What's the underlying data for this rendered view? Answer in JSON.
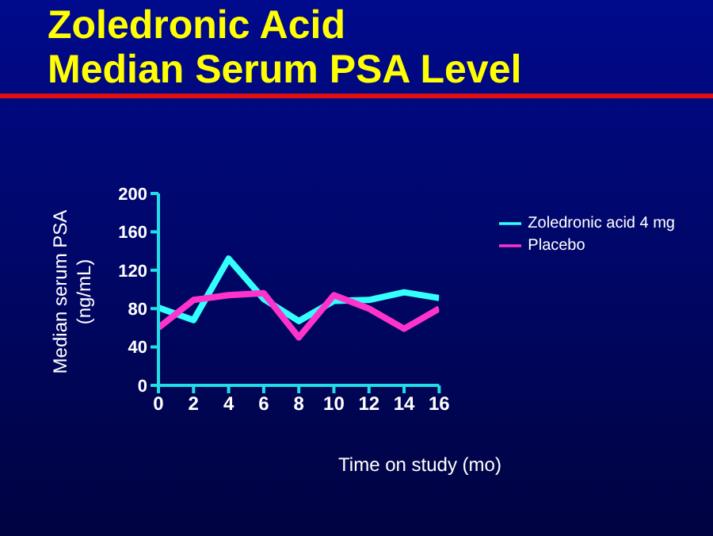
{
  "chart_data": {
    "type": "line",
    "title": "Zoledronic Acid\nMedian Serum PSA Level",
    "xlabel": "Time on study (mo)",
    "ylabel": "Median serum PSA\n(ng/mL)",
    "x": [
      0,
      2,
      4,
      6,
      8,
      10,
      12,
      14,
      16
    ],
    "series": [
      {
        "name": "Zoledronic acid  4 mg",
        "color": "#33ffff",
        "values": [
          81,
          68,
          132,
          90,
          67,
          88,
          89,
          97,
          91
        ]
      },
      {
        "name": "Placebo",
        "color": "#ff33cc",
        "values": [
          60,
          89,
          94,
          96,
          50,
          94,
          80,
          59,
          80
        ]
      }
    ],
    "xlim": [
      0,
      16
    ],
    "xticks": [
      0,
      2,
      4,
      6,
      8,
      10,
      12,
      14,
      16
    ],
    "ylim": [
      0,
      200
    ],
    "yticks": [
      0,
      40,
      80,
      120,
      160,
      200
    ],
    "grid": false,
    "legend": "top right",
    "marker": "none",
    "line_style": "solid"
  }
}
